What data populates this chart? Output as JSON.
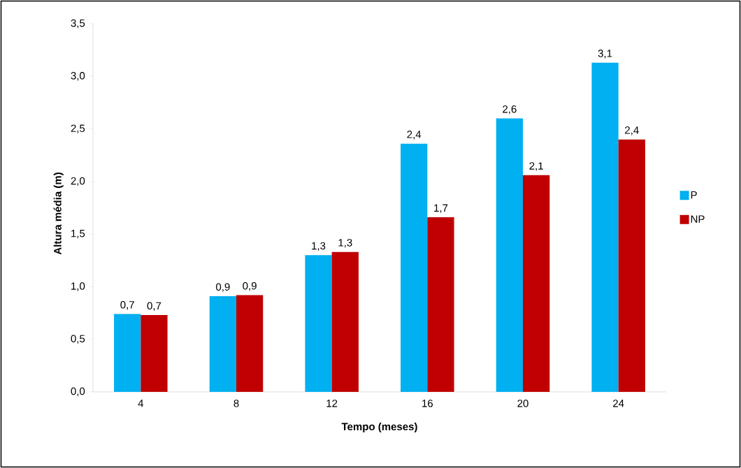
{
  "chart_data": {
    "type": "bar",
    "xlabel": "Tempo (meses)",
    "ylabel": "Altura média (m)",
    "categories": [
      "4",
      "8",
      "12",
      "16",
      "20",
      "24"
    ],
    "series": [
      {
        "name": "P",
        "color": "#00b0f0",
        "values": [
          0.74,
          0.91,
          1.3,
          2.36,
          2.6,
          3.13
        ],
        "value_labels": [
          "0,7",
          "0,9",
          "1,3",
          "2,4",
          "2,6",
          "3,1"
        ]
      },
      {
        "name": "NP",
        "color": "#c00000",
        "values": [
          0.73,
          0.92,
          1.33,
          1.66,
          2.06,
          2.4
        ],
        "value_labels": [
          "0,7",
          "0,9",
          "1,3",
          "1,7",
          "2,1",
          "2,4"
        ]
      }
    ],
    "ylim": [
      0,
      3.5
    ],
    "yticks": [
      {
        "value": 0,
        "label": "0,0"
      },
      {
        "value": 0.5,
        "label": "0,5"
      },
      {
        "value": 1,
        "label": "1,0"
      },
      {
        "value": 1.5,
        "label": "1,5"
      },
      {
        "value": 2,
        "label": "2,0"
      },
      {
        "value": 2.5,
        "label": "2,5"
      },
      {
        "value": 3,
        "label": "3,0"
      },
      {
        "value": 3.5,
        "label": "3,5"
      }
    ],
    "legend": "right"
  }
}
